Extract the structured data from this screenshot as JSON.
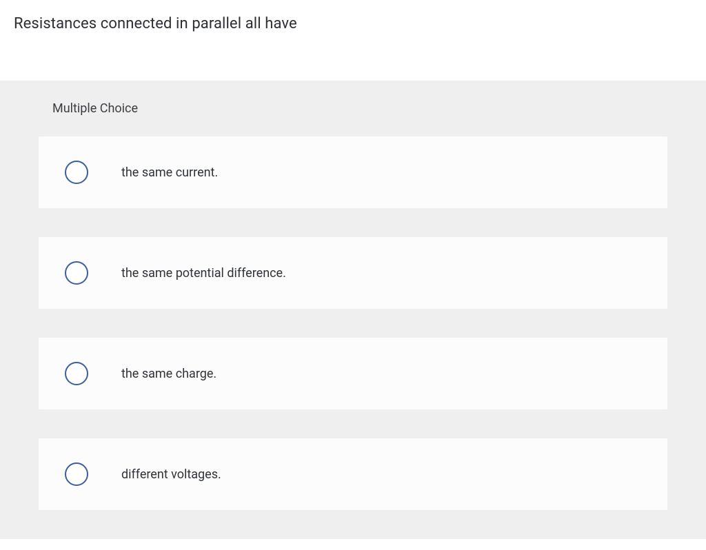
{
  "question": {
    "stem": "Resistances connected in parallel all have",
    "section_label": "Multiple Choice",
    "options": [
      {
        "label": "the same current."
      },
      {
        "label": "the same potential difference."
      },
      {
        "label": "the same charge."
      },
      {
        "label": "different voltages."
      }
    ]
  },
  "style": {
    "radio_border_color": "#3b5e9e",
    "panel_bg": "#efefef",
    "option_bg": "#fcfcfc",
    "text_color": "#2b2e33"
  }
}
